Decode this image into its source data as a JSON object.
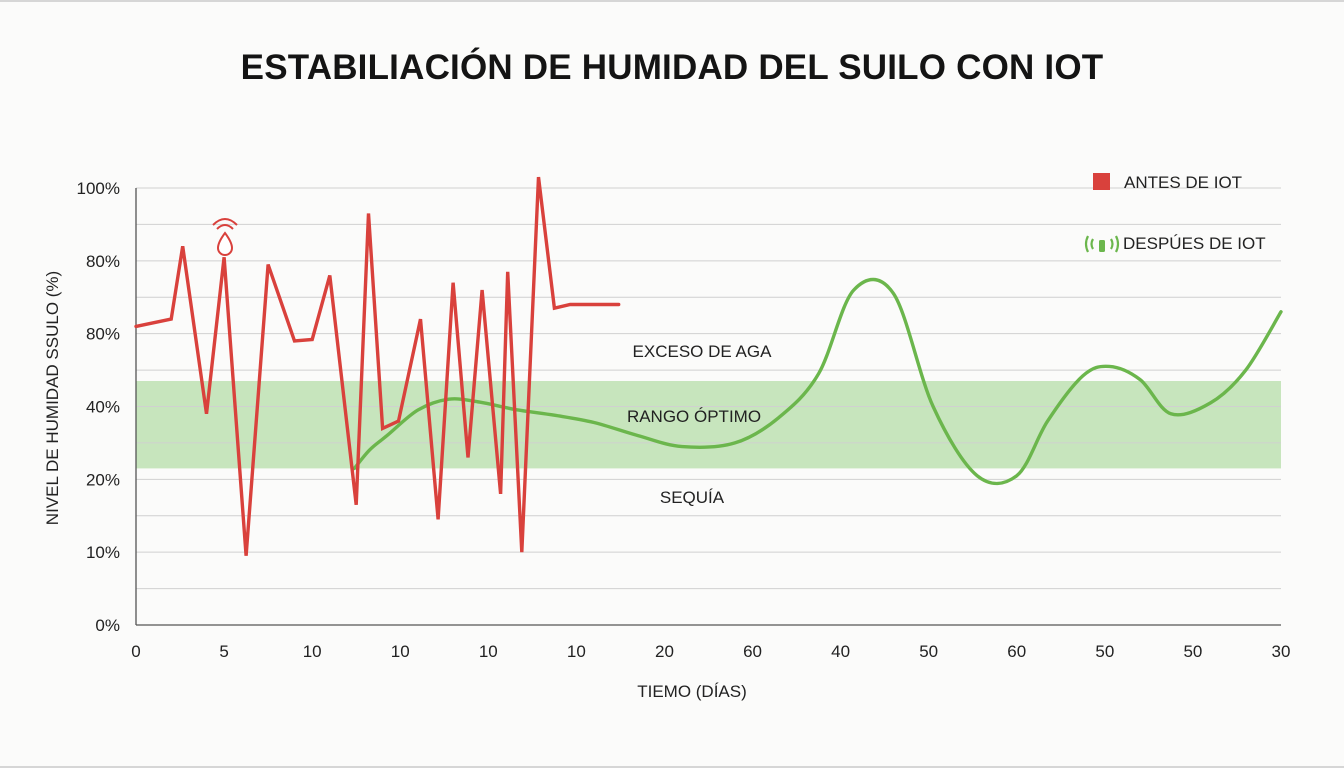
{
  "title": "ESTABILIACIÓN DE HUMIDAD DEL SUILO CON IOT",
  "chart_data": {
    "type": "line",
    "title": "ESTABILIACIÓN DE HUMIDAD DEL SUILO CON IOT",
    "xlabel": "TIEMO (DÍAS)",
    "ylabel": "NIVEL DE HUMIDAD SSULO (%)",
    "x_tick_labels": [
      "0",
      "5",
      "10",
      "10",
      "10",
      "10",
      "20",
      "60",
      "40",
      "50",
      "60",
      "50",
      "50",
      "30"
    ],
    "y_tick_labels": [
      "0%",
      "10%",
      "20%",
      "40%",
      "80%",
      "80%",
      "100%"
    ],
    "grid": true,
    "legend_position": "top-right",
    "zones": [
      {
        "name": "EXCESO DE AGA"
      },
      {
        "name": "RANGO ÓPTIMO",
        "range_index": [
          2.15,
          3.35
        ],
        "color": "#c7e5bd"
      },
      {
        "name": "SEQUÍA"
      }
    ],
    "series": [
      {
        "name": "ANTES DE IOT",
        "color": "#d9413c",
        "x": [
          0,
          0.4,
          0.53,
          0.8,
          1.0,
          1.25,
          1.5,
          1.8,
          2.0,
          2.2,
          2.5,
          2.64,
          2.8,
          2.98,
          3.23,
          3.43,
          3.6,
          3.77,
          3.93,
          4.14,
          4.22,
          4.38,
          4.57,
          4.75,
          4.93,
          5.15,
          5.32,
          5.48
        ],
        "values": [
          4.1,
          4.2,
          5.2,
          2.9,
          5.05,
          0.95,
          4.95,
          3.9,
          3.92,
          4.8,
          1.65,
          5.65,
          2.7,
          2.8,
          4.2,
          1.45,
          4.7,
          2.3,
          4.6,
          1.8,
          4.85,
          1.0,
          6.15,
          4.35,
          4.4,
          4.4,
          4.4,
          4.4
        ]
      },
      {
        "name": "DESPÚES DE IOT",
        "color": "#6bb64c",
        "x": [
          2.48,
          2.65,
          2.85,
          3.2,
          3.55,
          3.9,
          4.3,
          4.75,
          5.2,
          5.7,
          6.2,
          6.8,
          7.3,
          7.75,
          8.15,
          8.6,
          9.05,
          9.55,
          10.0,
          10.35,
          10.75,
          11.05,
          11.4,
          11.75,
          12.2,
          12.6,
          13.0
        ],
        "values": [
          2.15,
          2.4,
          2.6,
          2.95,
          3.1,
          3.06,
          2.96,
          2.88,
          2.78,
          2.6,
          2.45,
          2.5,
          2.85,
          3.45,
          4.6,
          4.55,
          3.0,
          2.05,
          2.05,
          2.8,
          3.42,
          3.55,
          3.37,
          2.9,
          3.05,
          3.5,
          4.3
        ]
      }
    ]
  },
  "legend": {
    "before_label": "ANTES DE IOT",
    "after_label": "DESPÚES DE IOT",
    "before_icon": "red-square-icon",
    "after_icon": "wifi-signal-icon"
  },
  "colors": {
    "before": "#d9413c",
    "after": "#6bb64c",
    "optimal_band": "#c7e5bd",
    "grid": "#d0d0d0"
  }
}
